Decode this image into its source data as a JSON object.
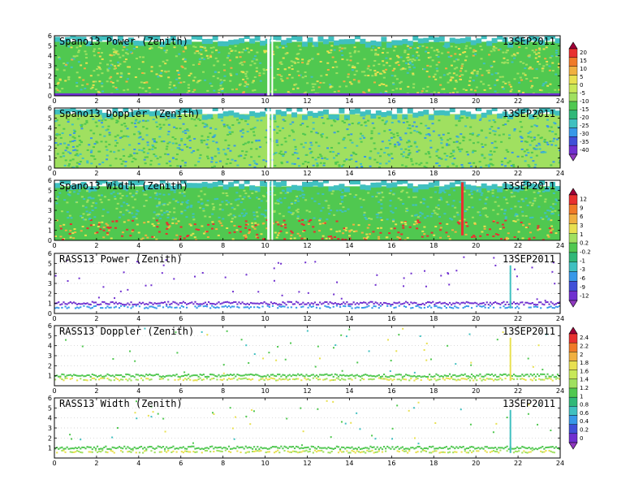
{
  "chart_data": [
    {
      "type": "heatmap",
      "title": "Spano13 Power (Zenith)",
      "date": "13SEP2011",
      "xlim": [
        0,
        24
      ],
      "ylim": [
        0,
        6
      ],
      "xticks": [
        "0",
        "2",
        "4",
        "6",
        "8",
        "10",
        "12",
        "14",
        "16",
        "18",
        "20",
        "22",
        "24"
      ],
      "yticks": [
        "0",
        "1",
        "2",
        "3",
        "4",
        "5",
        "6"
      ],
      "colorbar": "power"
    },
    {
      "type": "heatmap",
      "title": "Spano13 Doppler (Zenith)",
      "date": "13SEP2011",
      "xlim": [
        0,
        24
      ],
      "ylim": [
        0,
        6
      ],
      "xticks": [
        "0",
        "2",
        "4",
        "6",
        "8",
        "10",
        "12",
        "14",
        "16",
        "18",
        "20",
        "22",
        "24"
      ],
      "yticks": [
        "0",
        "1",
        "2",
        "3",
        "4",
        "5",
        "6"
      ],
      "colorbar": "power"
    },
    {
      "type": "heatmap",
      "title": "Spano13 Width (Zenith)",
      "date": "13SEP2011",
      "xlim": [
        0,
        24
      ],
      "ylim": [
        0,
        6
      ],
      "xticks": [
        "0",
        "2",
        "4",
        "6",
        "8",
        "10",
        "12",
        "14",
        "16",
        "18",
        "20",
        "22",
        "24"
      ],
      "yticks": [
        "0",
        "1",
        "2",
        "3",
        "4",
        "5",
        "6"
      ],
      "colorbar": "width"
    },
    {
      "type": "heatmap",
      "title": "RASS13 Power (Zenith)",
      "date": "13SEP2011",
      "xlim": [
        0,
        24
      ],
      "ylim": [
        0,
        6
      ],
      "xticks": [
        "0",
        "2",
        "4",
        "6",
        "8",
        "10",
        "12",
        "14",
        "16",
        "18",
        "20",
        "22",
        "24"
      ],
      "yticks": [
        "0",
        "1",
        "2",
        "3",
        "4",
        "5",
        "6"
      ],
      "colorbar": "width"
    },
    {
      "type": "heatmap",
      "title": "RASS13 Doppler (Zenith)",
      "date": "13SEP2011",
      "xlim": [
        0,
        24
      ],
      "ylim": [
        0,
        6
      ],
      "xticks": [
        "0",
        "2",
        "4",
        "6",
        "8",
        "10",
        "12",
        "14",
        "16",
        "18",
        "20",
        "22",
        "24"
      ],
      "yticks": [
        "1",
        "2",
        "3",
        "4",
        "5",
        "6"
      ],
      "colorbar": "rass"
    },
    {
      "type": "heatmap",
      "title": "RASS13 Width (Zenith)",
      "date": "13SEP2011",
      "xlim": [
        0,
        24
      ],
      "ylim": [
        0,
        6
      ],
      "xticks": [
        "0",
        "2",
        "4",
        "6",
        "8",
        "10",
        "12",
        "14",
        "16",
        "18",
        "20",
        "22",
        "24"
      ],
      "yticks": [
        "1",
        "2",
        "3",
        "4",
        "5",
        "6"
      ],
      "colorbar": "rass"
    }
  ],
  "colorbars": {
    "power": {
      "labels": [
        "20",
        "15",
        "10",
        "5",
        "0",
        "-5",
        "-10",
        "-15",
        "-20",
        "-25",
        "-30",
        "-35",
        "-40"
      ],
      "colors": [
        "#a00038",
        "#e83030",
        "#f07a28",
        "#f0b040",
        "#e8e050",
        "#c8e858",
        "#a0e060",
        "#50c850",
        "#30b878",
        "#40c0c0",
        "#3898e8",
        "#4050d8",
        "#7030d0",
        "#9038c0"
      ]
    },
    "width": {
      "labels": [
        "12",
        "9",
        "6",
        "3",
        "1",
        "0.2",
        "-0.2",
        "-1",
        "-3",
        "-6",
        "-9",
        "-12"
      ],
      "colors": [
        "#a00038",
        "#e83030",
        "#f07a28",
        "#f0b040",
        "#e8e050",
        "#a0e060",
        "#50c850",
        "#30b878",
        "#40c0c0",
        "#3898e8",
        "#4050d8",
        "#7030d0",
        "#9038c0"
      ]
    },
    "rass": {
      "labels": [
        "2.4",
        "2.2",
        "2",
        "1.8",
        "1.6",
        "1.4",
        "1.2",
        "1",
        "0.8",
        "0.6",
        "0.4",
        "0.2",
        "0"
      ],
      "colors": [
        "#a00038",
        "#e83030",
        "#f07a28",
        "#f0b040",
        "#e8e050",
        "#c8e858",
        "#a0e060",
        "#50c850",
        "#30b878",
        "#40c0c0",
        "#3898e8",
        "#4050d8",
        "#7030d0",
        "#9038c0"
      ]
    }
  },
  "palette": {
    "bg_green": "#50c850",
    "light_green": "#a0e060",
    "teal": "#40c0c0",
    "yellow": "#e8e050",
    "orange": "#f0b040",
    "red": "#e83030",
    "purple": "#7030d0",
    "blue": "#3898e8"
  }
}
